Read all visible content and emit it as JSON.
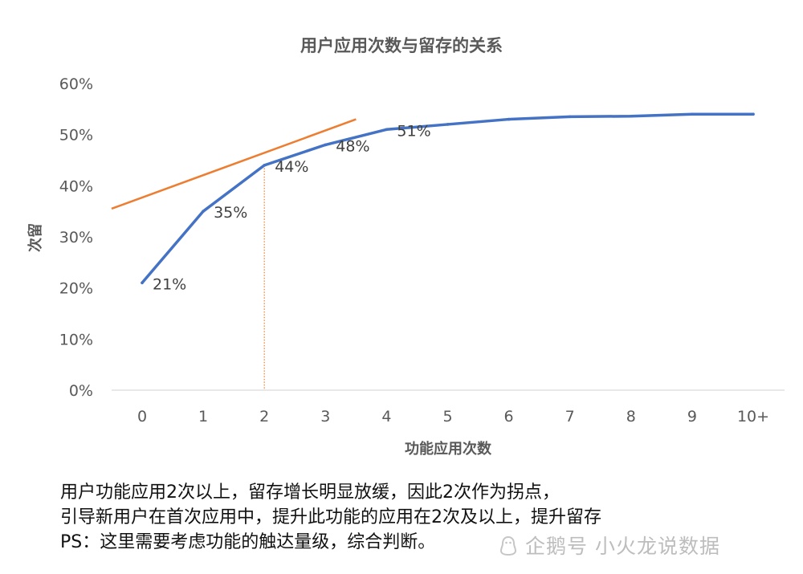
{
  "chart_data": {
    "type": "line",
    "title": "用户应用次数与留存的关系",
    "xlabel": "功能应用次数",
    "ylabel": "次留",
    "categories": [
      "0",
      "1",
      "2",
      "3",
      "4",
      "5",
      "6",
      "7",
      "8",
      "9",
      "10+"
    ],
    "y_ticks": [
      "0%",
      "10%",
      "20%",
      "30%",
      "40%",
      "50%",
      "60%"
    ],
    "ylim": [
      0,
      60
    ],
    "grid": false,
    "series": [
      {
        "values": [
          21,
          35,
          44,
          48,
          51,
          52,
          53,
          53.5,
          53.6,
          54,
          54
        ],
        "color": "#4472C4"
      }
    ],
    "data_labels": [
      {
        "index": 0,
        "text": "21%"
      },
      {
        "index": 1,
        "text": "35%"
      },
      {
        "index": 2,
        "text": "44%"
      },
      {
        "index": 3,
        "text": "48%"
      },
      {
        "index": 4,
        "text": "51%"
      }
    ],
    "tangent_line": {
      "color": "#ED7D31",
      "from": {
        "x": -0.5,
        "y": 35.5
      },
      "to": {
        "x": 3.5,
        "y": 53
      }
    },
    "inflection_marker": {
      "category_index": 2,
      "color": "#ED7D31",
      "style": "dotted"
    }
  },
  "notes": {
    "line1": "用户功能应用2次以上，留存增长明显放缓，因此2次作为拐点，",
    "line2": "引导新用户在首次应用中，提升此功能的应用在2次及以上，提升留存",
    "line3": "PS：这里需要考虑功能的触达量级，综合判断。"
  },
  "watermark": {
    "logo_icon": "penguin-icon",
    "text": "企鹅号 小火龙说数据"
  }
}
